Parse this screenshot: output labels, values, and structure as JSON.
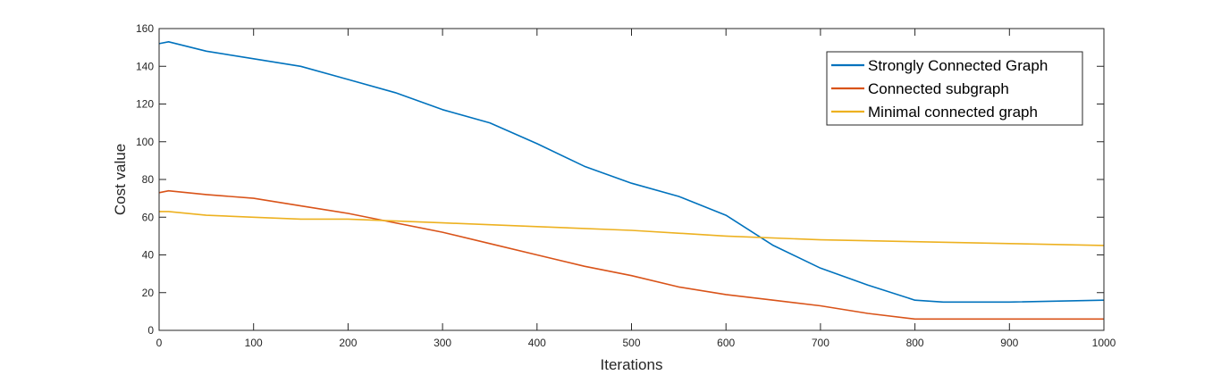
{
  "chart_data": {
    "type": "line",
    "xlabel": "Iterations",
    "ylabel": "Cost value",
    "xlim": [
      0,
      1000
    ],
    "ylim": [
      0,
      160
    ],
    "xticks": [
      0,
      100,
      200,
      300,
      400,
      500,
      600,
      700,
      800,
      900,
      1000
    ],
    "yticks": [
      0,
      20,
      40,
      60,
      80,
      100,
      120,
      140,
      160
    ],
    "grid": false,
    "legend_position": "top-right",
    "series": [
      {
        "name": "Strongly Connected Graph",
        "color": "#0072BD",
        "x": [
          0,
          10,
          50,
          100,
          150,
          200,
          250,
          300,
          350,
          400,
          450,
          500,
          550,
          600,
          650,
          700,
          750,
          800,
          830,
          900,
          1000
        ],
        "y": [
          152,
          153,
          148,
          144,
          140,
          133,
          126,
          117,
          110,
          99,
          87,
          78,
          71,
          61,
          45,
          33,
          24,
          16,
          15,
          15,
          16
        ]
      },
      {
        "name": "Connected subgraph",
        "color": "#D95319",
        "x": [
          0,
          10,
          50,
          100,
          150,
          200,
          250,
          300,
          350,
          400,
          450,
          500,
          550,
          600,
          650,
          700,
          750,
          800,
          850,
          900,
          1000
        ],
        "y": [
          73,
          74,
          72,
          70,
          66,
          62,
          57,
          52,
          46,
          40,
          34,
          29,
          23,
          19,
          16,
          13,
          9,
          6,
          6,
          6,
          6
        ]
      },
      {
        "name": "Minimal connected graph",
        "color": "#EDB120",
        "x": [
          0,
          10,
          50,
          100,
          150,
          200,
          300,
          400,
          500,
          600,
          700,
          800,
          900,
          1000
        ],
        "y": [
          63,
          63,
          61,
          60,
          59,
          59,
          57,
          55,
          53,
          50,
          48,
          47,
          46,
          45
        ]
      }
    ]
  }
}
